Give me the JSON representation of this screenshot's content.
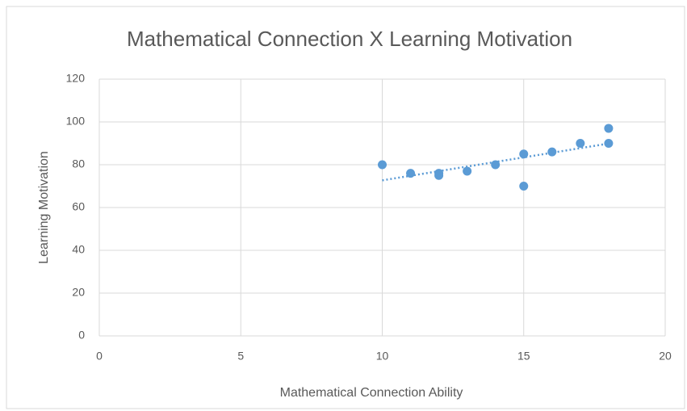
{
  "chart_data": {
    "type": "scatter",
    "title": "Mathematical Connection X Learning Motivation",
    "x_label": "Mathematical Connection Ability",
    "y_label": "Learning Motivation",
    "series": [
      {
        "name": "Learning Motivation",
        "color": "#5b9bd5",
        "x": [
          10,
          11,
          12,
          12,
          13,
          14,
          15,
          15,
          16,
          17,
          18,
          18
        ],
        "values": [
          80,
          76,
          75,
          76,
          77,
          80,
          85,
          70,
          86,
          90,
          97,
          90
        ]
      }
    ],
    "xlim": [
      0,
      20
    ],
    "xticks": [
      0,
      5,
      10,
      15,
      20
    ],
    "ylim": [
      0,
      120
    ],
    "yticks": [
      0,
      20,
      40,
      60,
      80,
      100,
      120
    ],
    "grid": true,
    "trendline": "linear"
  }
}
